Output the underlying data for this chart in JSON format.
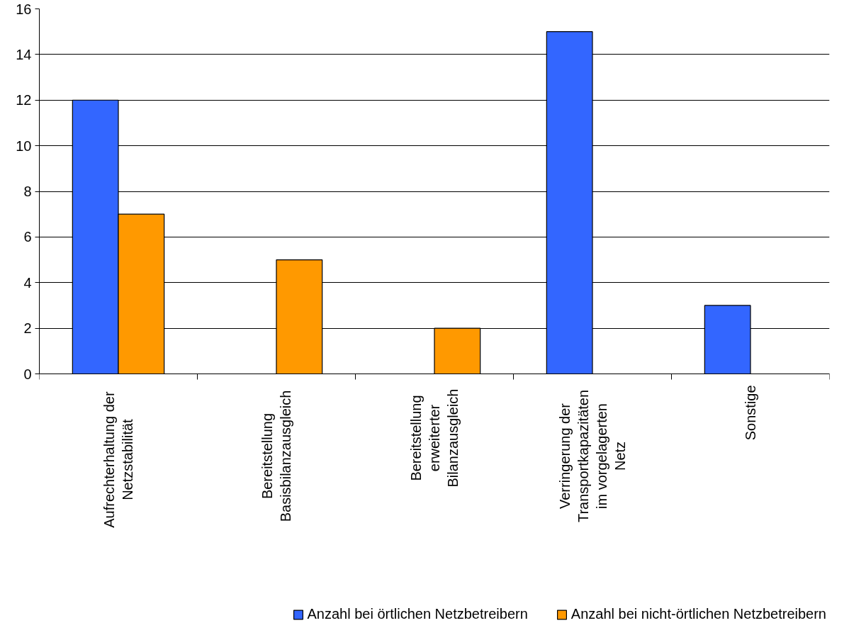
{
  "chart_data": {
    "type": "bar",
    "categories": [
      "Aufrechterhaltung der\nNetzstabilität",
      "Bereitstellung\nBasisbilanzausgleich",
      "Bereitstellung\nerweiterter\nBilanzausgleich",
      "Verringerung der\nTransportkapazitäten\nim vorgelagerten\nNetz",
      "Sonstige"
    ],
    "series": [
      {
        "name": "Anzahl bei örtlichen Netzbetreibern",
        "color": "#3366ff",
        "values": [
          12,
          0,
          0,
          15,
          3
        ]
      },
      {
        "name": "Anzahl bei nicht-örtlichen Netzbetreibern",
        "color": "#ff9900",
        "values": [
          7,
          5,
          2,
          0,
          0
        ]
      }
    ],
    "ylim": [
      0,
      16
    ],
    "yticks": [
      0,
      2,
      4,
      6,
      8,
      10,
      12,
      14,
      16
    ],
    "grid": "y",
    "legend": "bottom"
  }
}
